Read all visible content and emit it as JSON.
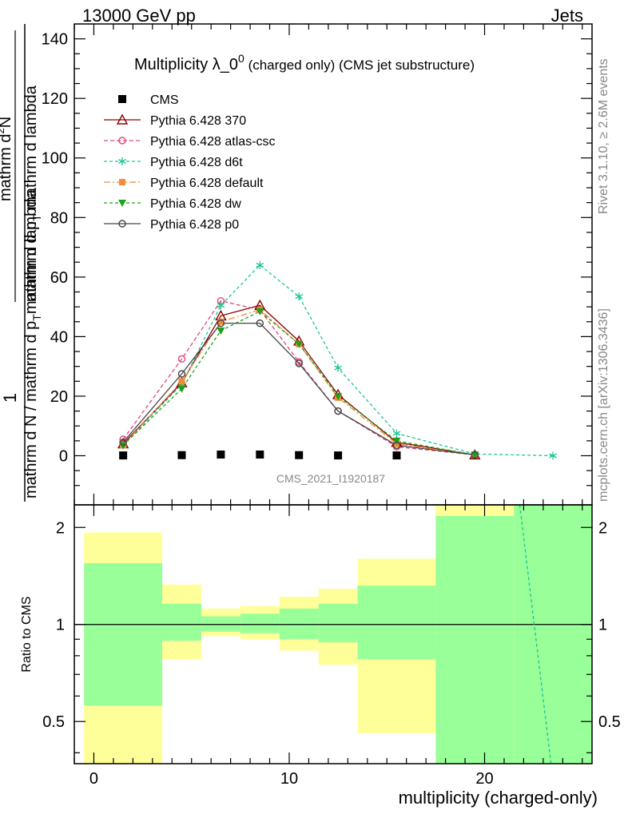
{
  "header": {
    "left": "13000 GeV pp",
    "right": "Jets"
  },
  "title": {
    "main": "Multiplicity λ_0",
    "superscript": "0",
    "suffix": " (charged only) (CMS jet substructure)"
  },
  "side_labels": {
    "rivet_prefix": "Rivet 3.1.10, ",
    "rivet_suffix": "≥ 2.6M events",
    "mcplots": "mcplots.cern.ch [arXiv:1306.3436]"
  },
  "watermark": "CMS_2021_I1920187",
  "ylabel_top": {
    "numerator": "1",
    "denominator_lines": [
      "mathrm d N / mathrm d p_T mathrm d lambda"
    ]
  },
  "ylabel_top_parts": {
    "num_left": "1",
    "den": "mathrm d N / mathrm d p",
    "den_sub": "T",
    "den_tail": "mathrm d lambda",
    "num_right_top": "mathrm d",
    "num_right_sup": "2",
    "num_right_tail": "N",
    "num_right_den": "mathrm d p",
    "num_right_den_sub": "T",
    "num_right_den_tail": " mathrm d lambda"
  },
  "xlabel": "multiplicity (charged-only)",
  "ratio_ylabel": "Ratio to CMS",
  "colors": {
    "cms": "#000000",
    "p370": "#8b0000",
    "atlas": "#e0457b",
    "d6t": "#1ec496",
    "default": "#f58a3a",
    "dw": "#1aa31a",
    "p0": "#444444",
    "band_green": "#99ff99",
    "band_yellow": "#ffff99"
  },
  "chart_data": {
    "type": "line",
    "x_range": [
      -1,
      25.5
    ],
    "top_y_range": [
      -16.5,
      145
    ],
    "top_y_ticks": [
      0,
      20,
      40,
      60,
      80,
      100,
      120,
      140
    ],
    "x_ticks": [
      0,
      10,
      20
    ],
    "ratio_y_range": [
      0.37,
      2.35
    ],
    "ratio_y_ticks": [
      0.5,
      1,
      2
    ],
    "legend_placement": "top-left",
    "series": [
      {
        "key": "cms",
        "name": "CMS",
        "marker": "square",
        "dash": "none",
        "x": [
          1.5,
          4.5,
          6.5,
          8.5,
          10.5,
          12.5,
          15.5
        ],
        "y": [
          0.1,
          0.2,
          0.4,
          0.4,
          0.2,
          0.1,
          0.1
        ]
      },
      {
        "key": "p370",
        "name": "Pythia 6.428 370",
        "marker": "triangle-open",
        "dash": "none",
        "x": [
          1.5,
          4.5,
          6.5,
          8.5,
          10.5,
          12.5,
          15.5,
          19.5
        ],
        "y": [
          4,
          24.5,
          47,
          50.5,
          38.5,
          20.5,
          4.5,
          0.3
        ]
      },
      {
        "key": "atlas",
        "name": "Pythia 6.428 atlas-csc",
        "marker": "circle-open",
        "dash": "5,3",
        "x": [
          1.5,
          4.5,
          6.5,
          8.5,
          10.5,
          12.5,
          15.5,
          19.5
        ],
        "y": [
          5.5,
          32.5,
          52,
          49,
          31.5,
          15,
          3,
          0.3
        ]
      },
      {
        "key": "d6t",
        "name": "Pythia 6.428 d6t",
        "marker": "star",
        "dash": "4,3",
        "x": [
          1.5,
          4.5,
          6.5,
          8.5,
          10.5,
          12.5,
          15.5,
          19.5,
          23.5
        ],
        "y": [
          3.5,
          24,
          50.5,
          64,
          53.5,
          29.5,
          7.5,
          0.6,
          0
        ]
      },
      {
        "key": "default",
        "name": "Pythia 6.428 default",
        "marker": "square-filled",
        "dash": "8,3,2,3",
        "x": [
          1.5,
          4.5,
          6.5,
          8.5,
          10.5,
          12.5,
          15.5,
          19.5
        ],
        "y": [
          3.5,
          25,
          45,
          49,
          37.5,
          19.5,
          4,
          0.3
        ]
      },
      {
        "key": "dw",
        "name": "Pythia 6.428 dw",
        "marker": "triangle-down",
        "dash": "4,3",
        "x": [
          1.5,
          4.5,
          6.5,
          8.5,
          10.5,
          12.5,
          15.5,
          19.5
        ],
        "y": [
          3.5,
          22.5,
          42,
          48.5,
          37.5,
          20,
          5,
          0.3
        ]
      },
      {
        "key": "p0",
        "name": "Pythia 6.428 p0",
        "marker": "circle-open",
        "dash": "none",
        "x": [
          1.5,
          4.5,
          6.5,
          8.5,
          10.5,
          12.5,
          15.5,
          19.5
        ],
        "y": [
          4.5,
          27.5,
          44.5,
          44.5,
          31,
          15,
          3.5,
          0.3
        ]
      }
    ],
    "ratio_bands": [
      {
        "x0": -0.5,
        "x1": 3.5,
        "g_lo": 0.56,
        "g_hi": 1.55,
        "y_lo": 0.37,
        "y_hi": 1.93
      },
      {
        "x0": 3.5,
        "x1": 5.5,
        "g_lo": 0.89,
        "g_hi": 1.16,
        "y_lo": 0.78,
        "y_hi": 1.33
      },
      {
        "x0": 5.5,
        "x1": 7.5,
        "g_lo": 0.95,
        "g_hi": 1.06,
        "y_lo": 0.92,
        "y_hi": 1.12
      },
      {
        "x0": 7.5,
        "x1": 9.5,
        "g_lo": 0.94,
        "g_hi": 1.08,
        "y_lo": 0.9,
        "y_hi": 1.14
      },
      {
        "x0": 9.5,
        "x1": 11.5,
        "g_lo": 0.9,
        "g_hi": 1.12,
        "y_lo": 0.83,
        "y_hi": 1.22
      },
      {
        "x0": 11.5,
        "x1": 13.5,
        "g_lo": 0.88,
        "g_hi": 1.16,
        "y_lo": 0.75,
        "y_hi": 1.29
      },
      {
        "x0": 13.5,
        "x1": 17.5,
        "g_lo": 0.78,
        "g_hi": 1.32,
        "y_lo": 0.46,
        "y_hi": 1.6
      },
      {
        "x0": 17.5,
        "x1": 21.5,
        "g_lo": 0.37,
        "g_hi": 2.35,
        "y_lo": 0.37,
        "y_hi": 2.35
      },
      {
        "x0": 21.5,
        "x1": 25.5,
        "g_lo": 0.37,
        "g_hi": 2.35,
        "y_lo": 0.37,
        "y_hi": 2.35
      }
    ],
    "ratio_yellow_top_only": [
      {
        "x0": 17.5,
        "x1": 21.5,
        "y_lo": 2.17,
        "y_hi": 2.35
      }
    ],
    "ratio_d6t_line": {
      "x": [
        21.8,
        23.4
      ],
      "y": [
        2.35,
        0.37
      ]
    }
  }
}
